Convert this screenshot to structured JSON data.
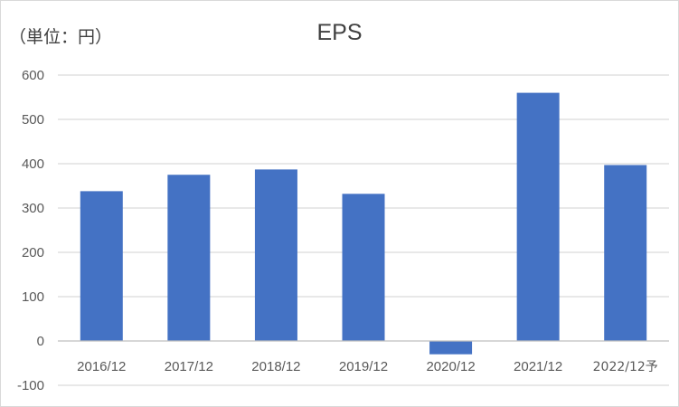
{
  "unit_label": "（単位：円）",
  "chart_data": {
    "type": "bar",
    "title": "EPS",
    "xlabel": "",
    "ylabel": "",
    "categories": [
      "2016/12",
      "2017/12",
      "2018/12",
      "2019/12",
      "2020/12",
      "2021/12",
      "2022/12予"
    ],
    "values": [
      338,
      375,
      387,
      332,
      -30,
      560,
      397
    ],
    "ylim": [
      -100,
      600
    ],
    "yticks": [
      600,
      500,
      400,
      300,
      200,
      100,
      0,
      -100
    ],
    "grid": true,
    "legend": "none",
    "colors": {
      "bar": "#4472C4",
      "grid": "#d9d9d9",
      "axis": "#bfbfbf"
    }
  }
}
